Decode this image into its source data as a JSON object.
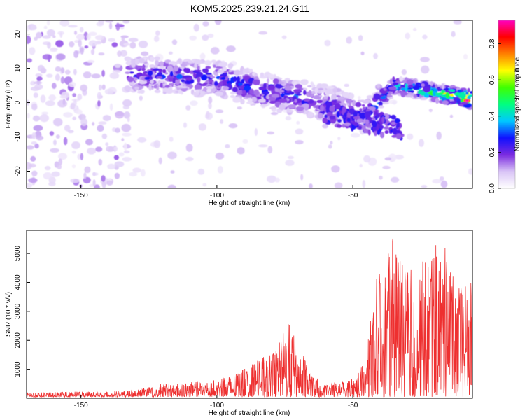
{
  "chart_data": [
    {
      "type": "heatmap",
      "title": "KOM5.2025.239.21.24.G11",
      "xlabel": "Height of straight line (km)",
      "ylabel": "Frequency (Hz)",
      "xlim": [
        -170,
        -6
      ],
      "ylim": [
        -25,
        24
      ],
      "xticks": [
        -150,
        -100,
        -50
      ],
      "yticks": [
        -20,
        -10,
        0,
        10,
        20
      ],
      "colorbar": {
        "label": "Normalized spectral amplitude",
        "range": [
          0.0,
          0.93
        ],
        "ticks": [
          "0.0",
          "0.2",
          "0.4",
          "0.6",
          "0.8"
        ],
        "colors": [
          "#ffffff",
          "#d9c4f6",
          "#7a2be0",
          "#1010ff",
          "#00c8ff",
          "#00ff80",
          "#40ff00",
          "#ffff00",
          "#ff8000",
          "#ff0000",
          "#ff00c0"
        ]
      },
      "ridge": {
        "description_points_x": [
          -133,
          -120,
          -100,
          -80,
          -60,
          -45,
          -35,
          -20,
          -6
        ],
        "frequency_hz": [
          8,
          8,
          7,
          3,
          0,
          -4,
          5,
          3,
          1
        ],
        "peak_amplitude": [
          0.25,
          0.3,
          0.3,
          0.35,
          0.25,
          0.3,
          0.45,
          0.6,
          0.93
        ]
      }
    },
    {
      "type": "line",
      "xlabel": "Height of straight line (km)",
      "ylabel": "SNR (10 * v/v)",
      "xlim": [
        -170,
        -6
      ],
      "ylim": [
        0,
        5800
      ],
      "xticks": [
        -150,
        -100,
        -50
      ],
      "yticks": [
        1000,
        2000,
        3000,
        4000,
        5000
      ],
      "series": [
        {
          "name": "SNR",
          "color": "#ee3030",
          "envelope_x": [
            -170,
            -140,
            -130,
            -120,
            -110,
            -100,
            -92,
            -85,
            -78,
            -74,
            -70,
            -65,
            -60,
            -55,
            -50,
            -46,
            -44,
            -42,
            -38,
            -35,
            -30,
            -25,
            -20,
            -15,
            -12,
            -9,
            -6
          ],
          "envelope_y": [
            200,
            250,
            300,
            500,
            550,
            650,
            900,
            1300,
            1700,
            2700,
            1900,
            800,
            500,
            600,
            700,
            1200,
            2200,
            4100,
            4600,
            5700,
            4500,
            4700,
            5300,
            5200,
            3800,
            3900,
            4100
          ]
        }
      ]
    }
  ]
}
